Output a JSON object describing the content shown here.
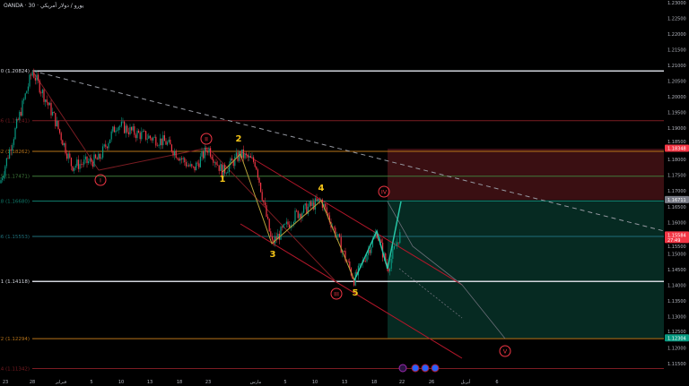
{
  "header": {
    "title": "OANDA · 30 · يورو / دولار أمريكي"
  },
  "chart_data": {
    "type": "candlestick",
    "symbol": "EUR/USD",
    "interval": "30",
    "ylim": [
      1.1115,
      1.231
    ],
    "y_ticks": [
      "1.23000",
      "1.22500",
      "1.22000",
      "1.21500",
      "1.21000",
      "1.20500",
      "1.20000",
      "1.19500",
      "1.19000",
      "1.18500",
      "1.18000",
      "1.17500",
      "1.17000",
      "1.16500",
      "1.16000",
      "1.15500",
      "1.15000",
      "1.14500",
      "1.14000",
      "1.13500",
      "1.13000",
      "1.12500",
      "1.12000",
      "1.11500"
    ],
    "x_ticks": [
      "23",
      "28",
      "فبراير",
      "5",
      "10",
      "13",
      "18",
      "23",
      "مارس",
      "5",
      "10",
      "13",
      "18",
      "22",
      "26",
      "أبريل",
      "6"
    ],
    "series": [
      {
        "points": [
          {
            "x": "Jan 23",
            "y": 1.1725
          },
          {
            "x": "Jan 28",
            "y": 1.2082
          },
          {
            "x": "Feb 2",
            "y": 1.1937
          },
          {
            "x": "Feb 5",
            "y": 1.178
          },
          {
            "x": "Feb 8",
            "y": 1.18
          },
          {
            "x": "Feb 10",
            "y": 1.1913
          },
          {
            "x": "Feb 12",
            "y": 1.1885
          },
          {
            "x": "Feb 17",
            "y": 1.1855
          },
          {
            "x": "Feb 21",
            "y": 1.1766
          },
          {
            "x": "Feb 23",
            "y": 1.1838
          },
          {
            "x": "Feb 25",
            "y": 1.176
          },
          {
            "x": "Feb 27",
            "y": 1.1817
          },
          {
            "x": "Mar 1",
            "y": 1.179
          },
          {
            "x": "Mar 4",
            "y": 1.1532
          },
          {
            "x": "Mar 8",
            "y": 1.1625
          },
          {
            "x": "Mar 11",
            "y": 1.167
          },
          {
            "x": "Mar 13",
            "y": 1.156
          },
          {
            "x": "Mar 16",
            "y": 1.1415
          },
          {
            "x": "Mar 20",
            "y": 1.157
          },
          {
            "x": "Mar 21",
            "y": 1.145
          },
          {
            "x": "Mar 23",
            "y": 1.1558
          }
        ]
      }
    ],
    "fib_levels": [
      {
        "label": "0 (1.20824)",
        "value": 1.20824,
        "color": "#d1d4dc"
      },
      {
        "label": ".236 (1.19241)",
        "value": 1.19241,
        "color": "#7a1c22"
      },
      {
        "label": ".382 (1.18262)",
        "value": 1.18262,
        "color": "#b8741a"
      },
      {
        "label": ".5 (1.17471)",
        "value": 1.17471,
        "color": "#3f7a3a"
      },
      {
        "label": ".618 (1.16680)",
        "value": 1.1668,
        "color": "#0f7a6a"
      },
      {
        "label": ".786 (1.15553)",
        "value": 1.15553,
        "color": "#1f6f7a"
      },
      {
        "label": "1 (1.14118)",
        "value": 1.14118,
        "color": "#d1d4dc"
      },
      {
        "label": "1.272 (1.12294)",
        "value": 1.12294,
        "color": "#b8741a"
      },
      {
        "label": "1.414 (1.11342)",
        "value": 1.11342,
        "color": "#7a1c22"
      }
    ],
    "price_tags": [
      {
        "label": "1.18348",
        "value": 1.18348,
        "color": "#f23645"
      },
      {
        "label": "1.16711",
        "value": 1.16711,
        "color": "#787b86"
      },
      {
        "label": "1.15584",
        "sub": "27:49",
        "value": 1.15584,
        "color": "#f23645"
      },
      {
        "label": "1.12304",
        "value": 1.12304,
        "color": "#089981"
      }
    ],
    "position": {
      "entry": 1.16711,
      "stop": 1.18348,
      "target": 1.12304,
      "stop_color": "#3a0f12",
      "target_color": "#062a22"
    },
    "waves_major": [
      {
        "label": "I",
        "x": "Feb 6",
        "y": 1.1745
      },
      {
        "label": "II",
        "x": "Feb 23",
        "y": 1.1863
      },
      {
        "label": "III",
        "x": "Mar 16",
        "y": 1.1368
      },
      {
        "label": "IV",
        "x": "Mar 21",
        "y": 1.1693
      },
      {
        "label": "V",
        "x": "Apr 7",
        "y": 1.12
      }
    ],
    "waves_minor": [
      {
        "label": "1",
        "y": 1.1735
      },
      {
        "label": "2",
        "y": 1.186
      },
      {
        "label": "3",
        "y": 1.1495
      },
      {
        "label": "4",
        "y": 1.17
      },
      {
        "label": "5",
        "y": 1.1385
      }
    ],
    "colors": {
      "up": "#089981",
      "down": "#f23645",
      "wave_major": "#f23645",
      "wave_minor": "#f5c518"
    }
  }
}
